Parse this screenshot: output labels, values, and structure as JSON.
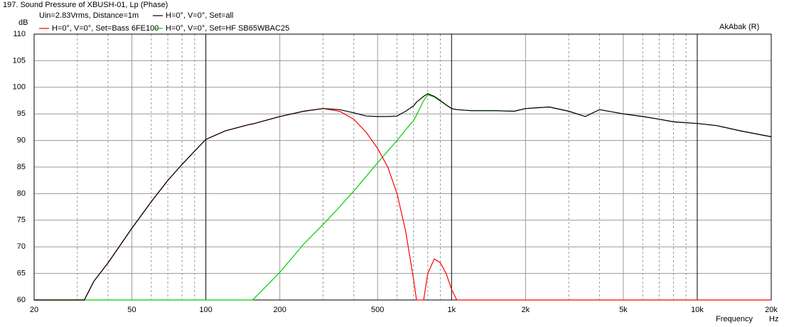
{
  "chart_data": {
    "type": "line",
    "title": "197. Sound Pressure of XBUSH-01, Lp (Phase)",
    "subtitle": "Uin=2.83Vrms, Distance=1m",
    "annotation": "AkAbak (R)",
    "y_label": "dB",
    "x_label": "Frequency",
    "x_unit": "Hz",
    "x_log": true,
    "grid": true,
    "x": [
      20,
      30,
      32,
      35,
      40,
      50,
      60,
      70,
      80,
      90,
      100,
      120,
      150,
      155,
      200,
      250,
      300,
      350,
      400,
      450,
      500,
      550,
      600,
      650,
      700,
      720,
      770,
      800,
      850,
      900,
      950,
      1000,
      1050,
      1200,
      1500,
      1800,
      2000,
      2500,
      3000,
      3500,
      4000,
      5000,
      6000,
      7000,
      8000,
      10000,
      12000,
      15000,
      20000
    ],
    "series": [
      {
        "name": "H=0°, V=0°, Set=all",
        "color": "#000000",
        "values": [
          60,
          60,
          60,
          63.5,
          67,
          73.5,
          78.5,
          82.5,
          85.5,
          88,
          90.2,
          91.8,
          93,
          93.1,
          94.5,
          95.5,
          96,
          95.8,
          95.2,
          94.6,
          94.5,
          94.5,
          94.6,
          95.5,
          96.5,
          97.2,
          98.3,
          98.8,
          98.3,
          97.5,
          96.7,
          96,
          95.8,
          95.6,
          95.6,
          95.5,
          96,
          96.3,
          95.5,
          94.5,
          95.8,
          95,
          94.5,
          94,
          93.5,
          93.2,
          92.8,
          91.8,
          90.7
        ]
      },
      {
        "name": "H=0°, V=0°, Set=Bass 6FE100",
        "color": "#ff0000",
        "values": [
          60,
          60,
          60,
          63.5,
          67,
          73.5,
          78.5,
          82.5,
          85.5,
          88,
          90.2,
          91.8,
          93,
          93.1,
          94.5,
          95.5,
          96,
          95.5,
          94,
          91.5,
          88.5,
          85,
          80,
          73,
          64,
          60,
          60,
          65,
          67.7,
          67,
          65,
          62,
          60,
          60,
          60,
          60,
          60,
          60,
          60,
          60,
          60,
          60,
          60,
          60,
          60,
          60,
          60,
          60,
          60
        ]
      },
      {
        "name": "H=0°, V=0°, Set=HF SB65WBAC25",
        "color": "#00cc00",
        "values": [
          60,
          60,
          60,
          60,
          60,
          60,
          60,
          60,
          60,
          60,
          60,
          60,
          60,
          60,
          65.2,
          70.5,
          74.2,
          77.5,
          80.5,
          83.3,
          85.8,
          88,
          90,
          92,
          93.7,
          94.8,
          97.5,
          98.6,
          98.2,
          97.4,
          96.7,
          96,
          95.8,
          95.6,
          95.6,
          95.5,
          96,
          96.3,
          95.5,
          94.5,
          95.8,
          95,
          94.5,
          94,
          93.5,
          93.2,
          92.8,
          91.8,
          90.7
        ]
      }
    ],
    "xlim": [
      20,
      20000
    ],
    "ylim": [
      60,
      110
    ],
    "xticks": [
      20,
      50,
      100,
      200,
      500,
      {
        "value": 1000,
        "label": "1k"
      },
      {
        "value": 2000,
        "label": "2k"
      },
      {
        "value": 5000,
        "label": "5k"
      },
      {
        "value": 10000,
        "label": "10k"
      },
      {
        "value": 20000,
        "label": "20k"
      }
    ],
    "xminor": [
      30,
      40,
      60,
      70,
      80,
      90,
      300,
      400,
      600,
      700,
      800,
      900,
      3000,
      4000,
      6000,
      7000,
      8000,
      9000
    ],
    "yticks": [
      60,
      65,
      70,
      75,
      80,
      85,
      90,
      95,
      100,
      105,
      110
    ]
  }
}
